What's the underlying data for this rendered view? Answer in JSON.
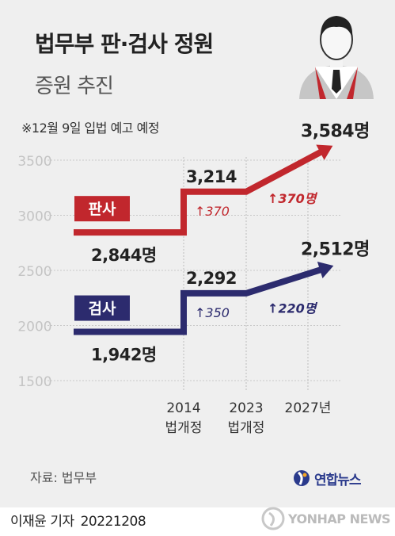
{
  "header": {
    "title": "법무부 판·검사 정원",
    "subtitle": "증원 추진",
    "note": "※12월 9일 입법 예고 예정"
  },
  "chart_data": {
    "type": "line",
    "title": "법무부 판·검사 정원",
    "subtitle": "증원 추진",
    "y_ticks": [
      "3500",
      "3000",
      "2500",
      "2000",
      "1500"
    ],
    "ylim": [
      1500,
      3500
    ],
    "x_ticks": [
      {
        "line1": "2014",
        "line2": "법개정"
      },
      {
        "line1": "2023",
        "line2": "법개정"
      },
      {
        "line1": "2027년",
        "line2": ""
      }
    ],
    "series": [
      {
        "name": "판사",
        "color": "#c1272d",
        "values": [
          2844,
          3214,
          3584
        ],
        "labels": [
          "2,844명",
          "3,214",
          "3,584명"
        ],
        "increments": [
          "↑370",
          "↑370명"
        ]
      },
      {
        "name": "검사",
        "color": "#2c2b6e",
        "values": [
          1942,
          2292,
          2512
        ],
        "labels": [
          "1,942명",
          "2,292",
          "2,512명"
        ],
        "increments": [
          "↑350",
          "↑220명"
        ]
      }
    ]
  },
  "source": "자료: 법무부",
  "logo": "연합뉴스",
  "footer": {
    "author": "이재윤 기자",
    "date": "20221208",
    "agency": "YONHAP NEWS"
  }
}
